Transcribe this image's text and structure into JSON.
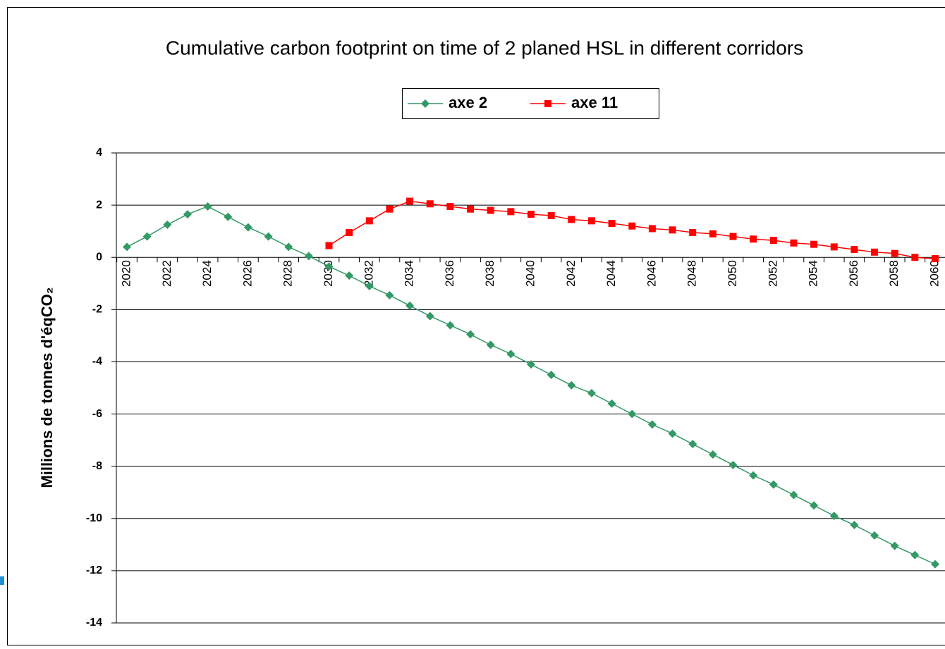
{
  "chart_data": {
    "type": "line",
    "title": "Cumulative carbon footprint on time of 2 planed HSL in different corridors",
    "y_label": "Millions de tonnes d'éqCO₂",
    "categories": [
      "2020",
      null,
      "2022",
      null,
      "2024",
      null,
      "2026",
      null,
      "2028",
      null,
      "2030",
      null,
      "2032",
      null,
      "2034",
      null,
      "2036",
      null,
      "2038",
      null,
      "2040",
      null,
      "2042",
      null,
      "2044",
      null,
      "2046",
      null,
      "2048",
      null,
      "2050",
      null,
      "2052",
      null,
      "2054",
      null,
      "2056",
      null,
      "2058",
      null,
      "2060"
    ],
    "series": [
      {
        "name": "axe 2",
        "color": "#339966",
        "marker": "diamond",
        "values": [
          0.4,
          0.8,
          1.25,
          1.65,
          1.95,
          1.55,
          1.15,
          0.8,
          0.4,
          0.05,
          -0.35,
          -0.7,
          -1.1,
          -1.45,
          -1.85,
          -2.25,
          -2.6,
          -2.95,
          -3.35,
          -3.7,
          -4.1,
          -4.5,
          -4.9,
          -5.2,
          -5.6,
          -6.0,
          -6.4,
          -6.75,
          -7.15,
          -7.55,
          -7.95,
          -8.35,
          -8.7,
          -9.1,
          -9.5,
          -9.9,
          -10.25,
          -10.65,
          -11.05,
          -11.4,
          -11.75
        ]
      },
      {
        "name": "axe 11",
        "color": "#ff0000",
        "marker": "square",
        "values": [
          null,
          null,
          null,
          null,
          null,
          null,
          null,
          null,
          null,
          null,
          0.45,
          0.95,
          1.4,
          1.85,
          2.15,
          2.05,
          1.95,
          1.85,
          1.8,
          1.75,
          1.65,
          1.6,
          1.45,
          1.4,
          1.3,
          1.2,
          1.1,
          1.05,
          0.95,
          0.9,
          0.8,
          0.7,
          0.65,
          0.55,
          0.5,
          0.4,
          0.3,
          0.2,
          0.15,
          0.0,
          -0.05
        ]
      }
    ],
    "ylim": [
      -14,
      4
    ],
    "yticks": [
      -14,
      -12,
      -10,
      -8,
      -6,
      -4,
      -2,
      0,
      2,
      4
    ],
    "grid": true,
    "legend": "top"
  }
}
